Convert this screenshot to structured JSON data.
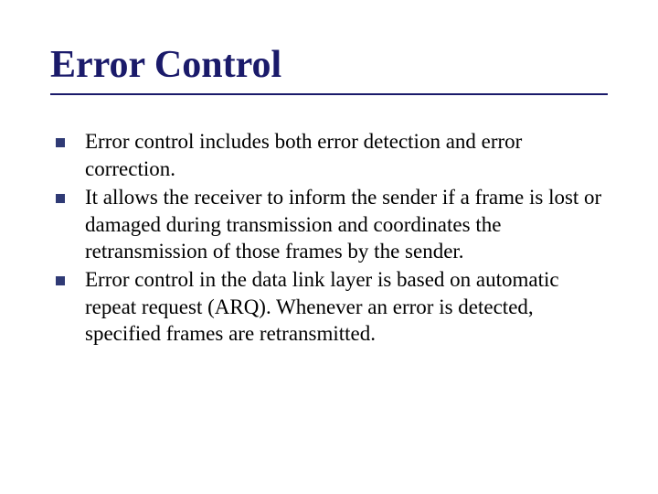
{
  "slide": {
    "title": "Error Control",
    "title_color": "#1a1a6a",
    "underline_color": "#1a1a6a",
    "bullet_marker_color": "#2f3a75",
    "text_color": "#000000",
    "background_color": "#ffffff",
    "title_fontsize": 42,
    "body_fontsize": 23,
    "bullets": [
      {
        "text": "Error control includes both error detection and error correction."
      },
      {
        "text": "It allows the receiver to inform the sender if a frame is lost or damaged during transmission and coordinates the retransmission of those frames by the sender."
      },
      {
        "text": "Error control in the data link layer is based on automatic repeat request (ARQ). Whenever an error is detected, specified frames are retransmitted."
      }
    ]
  }
}
